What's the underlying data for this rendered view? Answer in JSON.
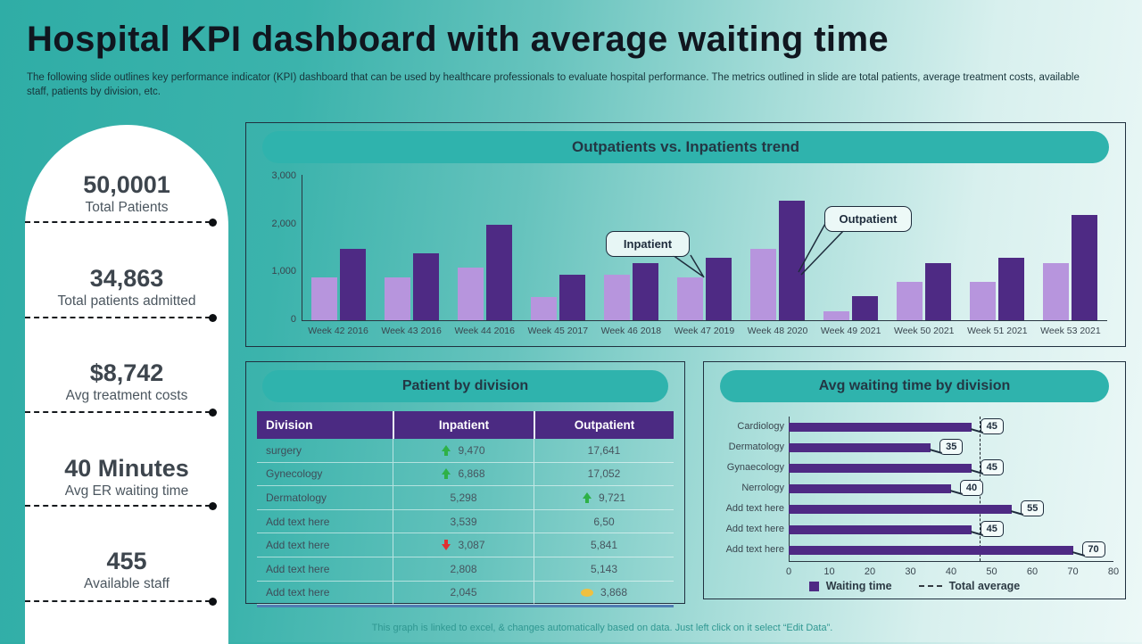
{
  "slide": {
    "title": "Hospital KPI dashboard with average waiting time",
    "subtitle": "The following slide outlines key performance indicator (KPI) dashboard that can be used by healthcare professionals to evaluate hospital performance. The metrics outlined in slide are total patients, average treatment costs, available staff, patients by division, etc.",
    "footer": "This graph is linked to excel, & changes automatically based on data. Just left click on it select “Edit Data”."
  },
  "kpi_sidebar": {
    "stats": [
      {
        "value": "50,0001",
        "label": "Total Patients"
      },
      {
        "value": "34,863",
        "label": "Total patients admitted"
      },
      {
        "value": "$8,742",
        "label": "Avg treatment costs"
      },
      {
        "value": "40 Minutes",
        "label": "Avg ER waiting time"
      },
      {
        "value": "455",
        "label": "Available staff"
      }
    ]
  },
  "chart_data": [
    {
      "type": "bar",
      "title": "Outpatients vs. Inpatients trend",
      "categories": [
        "Week 42 2016",
        "Week 43 2016",
        "Week 44 2016",
        "Week 45 2017",
        "Week 46 2018",
        "Week 47 2019",
        "Week 48 2020",
        "Week 49 2021",
        "Week 50 2021",
        "Week 51 2021",
        "Week 53 2021"
      ],
      "series": [
        {
          "name": "Inpatient",
          "color": "#b795dd",
          "values": [
            900,
            900,
            1100,
            480,
            950,
            900,
            1500,
            180,
            800,
            800,
            1200
          ]
        },
        {
          "name": "Outpatient",
          "color": "#4e2a84",
          "values": [
            1500,
            1400,
            2000,
            950,
            1200,
            1300,
            2500,
            500,
            1200,
            1300,
            2200
          ]
        }
      ],
      "ylim": [
        0,
        3000
      ],
      "yticks": [
        "0",
        "1,000",
        "2,000",
        "3,000"
      ],
      "grid": false,
      "legend_position": "none",
      "annotations": [
        {
          "label": "Inpatient",
          "points_to": "Week 47 2019 Inpatient bar"
        },
        {
          "label": "Outpatient",
          "points_to": "Week 48 2020 Outpatient bar"
        }
      ]
    },
    {
      "type": "table",
      "title": "Patient by division",
      "columns": [
        "Division",
        "Inpatient",
        "Outpatient"
      ],
      "rows": [
        {
          "division": "surgery",
          "inpatient": "9,470",
          "inpatient_trend": "up",
          "outpatient": "17,641",
          "outpatient_trend": "none"
        },
        {
          "division": "Gynecology",
          "inpatient": "6,868",
          "inpatient_trend": "up",
          "outpatient": "17,052",
          "outpatient_trend": "none"
        },
        {
          "division": "Dermatology",
          "inpatient": "5,298",
          "inpatient_trend": "none",
          "outpatient": "9,721",
          "outpatient_trend": "up"
        },
        {
          "division": "Add text here",
          "inpatient": "3,539",
          "inpatient_trend": "none",
          "outpatient": "6,50",
          "outpatient_trend": "none"
        },
        {
          "division": "Add text here",
          "inpatient": "3,087",
          "inpatient_trend": "down",
          "outpatient": "5,841",
          "outpatient_trend": "none"
        },
        {
          "division": "Add text here",
          "inpatient": "2,808",
          "inpatient_trend": "none",
          "outpatient": "5,143",
          "outpatient_trend": "none"
        },
        {
          "division": "Add text here",
          "inpatient": "2,045",
          "inpatient_trend": "none",
          "outpatient": "3,868",
          "outpatient_trend": "flat"
        }
      ]
    },
    {
      "type": "bar",
      "orientation": "horizontal",
      "title": "Avg waiting time by division",
      "categories": [
        "Cardiology",
        "Dermatology",
        "Gynaecology",
        "Nerrology",
        "Add text here",
        "Add text here",
        "Add text here"
      ],
      "values": [
        45,
        35,
        45,
        40,
        55,
        45,
        70
      ],
      "xlim": [
        0,
        80
      ],
      "xticks": [
        "0",
        "10",
        "20",
        "30",
        "40",
        "50",
        "60",
        "70",
        "80"
      ],
      "total_average": 47,
      "grid": false,
      "legend": [
        "Waiting time",
        "Total average"
      ],
      "legend_position": "bottom"
    }
  ],
  "colors": {
    "accent_teal": "#2fb3ad",
    "purple_dark": "#4e2a84",
    "purple_light": "#b795dd",
    "table_header": "#4b2a82",
    "trend_up": "#2eb147",
    "trend_down": "#e03131",
    "trend_flat": "#f0c040",
    "axis": "#2a3742"
  }
}
